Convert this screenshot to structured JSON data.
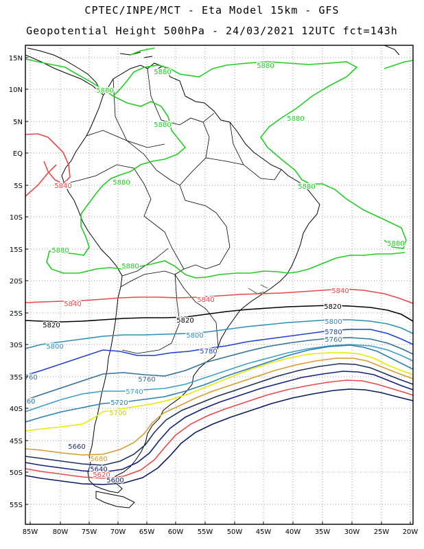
{
  "header": {
    "line1": "CPTEC/INPE/MCT - Eta Model 15km - GFS",
    "line2": "Geopotential Height 500hPa - 24/03/2021 12UTC fct=143h"
  },
  "axes": {
    "lat_labels": [
      "15N",
      "10N",
      "5N",
      "EQ",
      "5S",
      "10S",
      "15S",
      "20S",
      "25S",
      "30S",
      "35S",
      "40S",
      "45S",
      "50S",
      "55S"
    ],
    "lon_labels": [
      "85W",
      "80W",
      "75W",
      "70W",
      "65W",
      "60W",
      "55W",
      "50W",
      "45W",
      "40W",
      "35W",
      "30W",
      "25W",
      "20W"
    ]
  },
  "contours": [
    {
      "value": "5880",
      "color": "#22cc22",
      "labels": [
        "5880",
        "5880",
        "5880",
        "5880",
        "5880",
        "5880",
        "5880",
        "5880",
        "5880",
        "5880"
      ]
    },
    {
      "value": "5840",
      "color": "#e84848",
      "labels": [
        "5840",
        "5840",
        "5840",
        "5840"
      ]
    },
    {
      "value": "5820",
      "color": "#000000",
      "labels": [
        "5820",
        "5820",
        "5820"
      ]
    },
    {
      "value": "5800",
      "color": "#2a8fb8",
      "labels": [
        "5800",
        "5800",
        "5800",
        "5800"
      ]
    },
    {
      "value": "5780",
      "color": "#1f3fd0",
      "labels": [
        "5780",
        "5780",
        "5780"
      ]
    },
    {
      "value": "5760",
      "color": "#2f6f9a",
      "labels": [
        "5760",
        "5760",
        "5760",
        "760"
      ]
    },
    {
      "value": "5740",
      "color": "#3a9fc8",
      "labels": [
        "5740"
      ]
    },
    {
      "value": "5720",
      "color": "#2a7fb0",
      "labels": [
        "5720"
      ]
    },
    {
      "value": "5700",
      "color": "#e8e800",
      "labels": [
        "5700"
      ]
    },
    {
      "value": "5680",
      "color": "#d89a30",
      "labels": [
        "5680"
      ]
    },
    {
      "value": "5660",
      "color": "#1a3060",
      "labels": [
        "5660"
      ]
    },
    {
      "value": "5640",
      "color": "#102080",
      "labels": [
        "5640"
      ]
    },
    {
      "value": "5620",
      "color": "#e84848",
      "labels": [
        "5620"
      ]
    },
    {
      "value": "5600",
      "color": "#0a1a60",
      "labels": [
        "5600"
      ]
    }
  ]
}
